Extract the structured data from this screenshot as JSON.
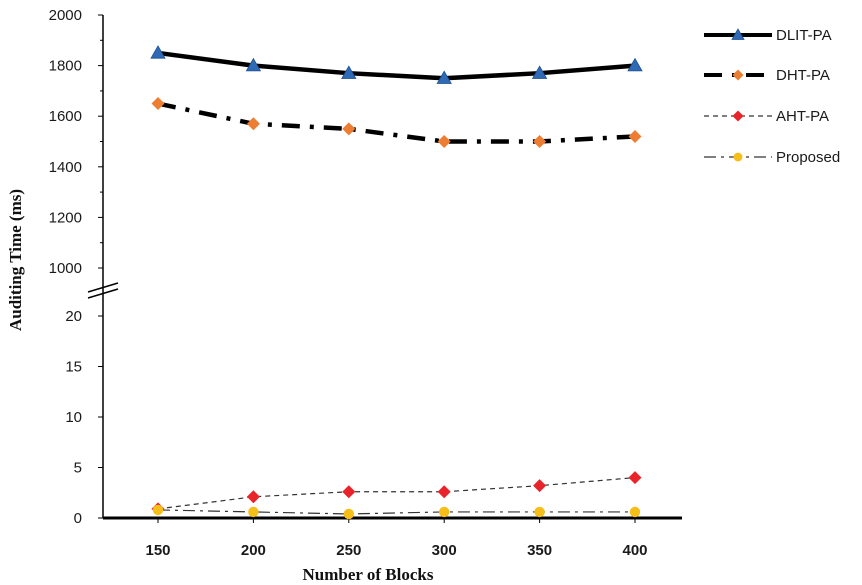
{
  "chart_data": {
    "type": "line",
    "title": "",
    "xlabel": "Number of Blocks",
    "ylabel": "Auditing Time (ms)",
    "x": [
      150,
      200,
      250,
      300,
      350,
      400
    ],
    "axis_break": "between 20 and 1000",
    "upper_ylim": [
      1000,
      2000
    ],
    "upper_yticks": [
      "1000",
      "1200",
      "1400",
      "1600",
      "1800",
      "2000"
    ],
    "lower_ylim": [
      0,
      20
    ],
    "lower_yticks": [
      "0",
      "5",
      "10",
      "15",
      "20"
    ],
    "xticks": [
      "150",
      "200",
      "250",
      "300",
      "350",
      "400"
    ],
    "legend_position": "right",
    "series": [
      {
        "name": "DLIT-PA",
        "segment": "upper",
        "values": [
          1850,
          1800,
          1770,
          1750,
          1770,
          1800
        ],
        "line_color": "#000000",
        "marker_color": "#2e6ab5",
        "marker": "triangle",
        "dash": "solid"
      },
      {
        "name": "DHT-PA",
        "segment": "upper",
        "values": [
          1650,
          1570,
          1550,
          1500,
          1500,
          1520
        ],
        "line_color": "#000000",
        "marker_color": "#ed7d31",
        "marker": "diamond",
        "dash": "dashdot-thick"
      },
      {
        "name": "AHT-PA",
        "segment": "lower",
        "values": [
          0.9,
          2.1,
          2.6,
          2.6,
          3.2,
          4.0
        ],
        "line_color": "#333333",
        "marker_color": "#e8242a",
        "marker": "diamond",
        "dash": "dashed"
      },
      {
        "name": "Proposed",
        "segment": "lower",
        "values": [
          0.8,
          0.6,
          0.4,
          0.6,
          0.6,
          0.6
        ],
        "line_color": "#333333",
        "marker_color": "#f5be18",
        "marker": "circle",
        "dash": "dashdot"
      }
    ]
  }
}
